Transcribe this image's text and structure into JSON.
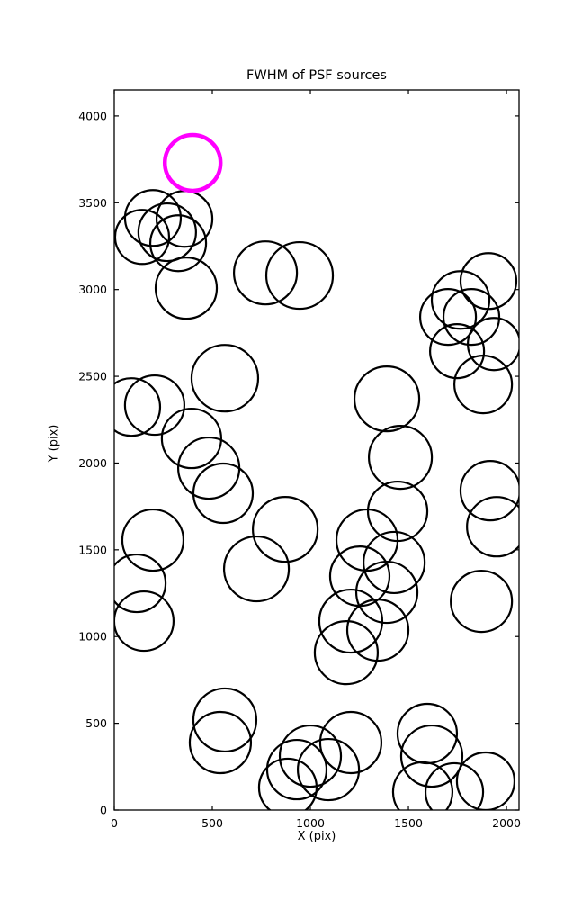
{
  "chart_data": {
    "type": "scatter",
    "title": "FWHM of PSF sources",
    "xlabel": "X (pix)",
    "ylabel": "Y (pix)",
    "xlim": [
      0,
      2064
    ],
    "ylim": [
      0,
      4150
    ],
    "xticks": [
      0,
      500,
      1000,
      1500,
      2000
    ],
    "yticks": [
      0,
      500,
      1000,
      1500,
      2000,
      2500,
      3000,
      3500,
      4000
    ],
    "grid": false,
    "legend": "none",
    "circle_color": "#000000",
    "circle_linewidth": 2.2,
    "highlight_color": "#ff00ff",
    "highlight": {
      "x": 400,
      "y": 3730,
      "r": 31,
      "lw": 4.5
    },
    "sources": [
      {
        "x": 197,
        "y": 3412,
        "r": 31
      },
      {
        "x": 358,
        "y": 3407,
        "r": 31
      },
      {
        "x": 142,
        "y": 3303,
        "r": 30
      },
      {
        "x": 326,
        "y": 3267,
        "r": 31
      },
      {
        "x": 270,
        "y": 3330,
        "r": 32
      },
      {
        "x": 367,
        "y": 3008,
        "r": 34
      },
      {
        "x": 771,
        "y": 3096,
        "r": 35
      },
      {
        "x": 945,
        "y": 3081,
        "r": 37
      },
      {
        "x": 1766,
        "y": 2940,
        "r": 32
      },
      {
        "x": 1702,
        "y": 2842,
        "r": 31
      },
      {
        "x": 1821,
        "y": 2842,
        "r": 31
      },
      {
        "x": 1908,
        "y": 3049,
        "r": 31
      },
      {
        "x": 1936,
        "y": 2686,
        "r": 29
      },
      {
        "x": 1748,
        "y": 2645,
        "r": 30
      },
      {
        "x": 1881,
        "y": 2453,
        "r": 32
      },
      {
        "x": 564,
        "y": 2489,
        "r": 37
      },
      {
        "x": 206,
        "y": 2334,
        "r": 33
      },
      {
        "x": 87,
        "y": 2323,
        "r": 32
      },
      {
        "x": 394,
        "y": 2142,
        "r": 33
      },
      {
        "x": 482,
        "y": 1971,
        "r": 34
      },
      {
        "x": 555,
        "y": 1826,
        "r": 33
      },
      {
        "x": 1390,
        "y": 2370,
        "r": 36
      },
      {
        "x": 1459,
        "y": 2033,
        "r": 35
      },
      {
        "x": 1445,
        "y": 1722,
        "r": 33
      },
      {
        "x": 1289,
        "y": 1556,
        "r": 34
      },
      {
        "x": 1427,
        "y": 1427,
        "r": 34
      },
      {
        "x": 197,
        "y": 1556,
        "r": 34
      },
      {
        "x": 115,
        "y": 1307,
        "r": 32
      },
      {
        "x": 151,
        "y": 1089,
        "r": 33
      },
      {
        "x": 872,
        "y": 1618,
        "r": 36
      },
      {
        "x": 725,
        "y": 1390,
        "r": 36
      },
      {
        "x": 1917,
        "y": 1841,
        "r": 33
      },
      {
        "x": 1950,
        "y": 1633,
        "r": 33
      },
      {
        "x": 1872,
        "y": 1203,
        "r": 34
      },
      {
        "x": 1252,
        "y": 1348,
        "r": 33
      },
      {
        "x": 1390,
        "y": 1255,
        "r": 34
      },
      {
        "x": 1206,
        "y": 1089,
        "r": 35
      },
      {
        "x": 1344,
        "y": 1037,
        "r": 34
      },
      {
        "x": 1183,
        "y": 907,
        "r": 35
      },
      {
        "x": 564,
        "y": 519,
        "r": 35
      },
      {
        "x": 541,
        "y": 389,
        "r": 34
      },
      {
        "x": 1000,
        "y": 311,
        "r": 34
      },
      {
        "x": 931,
        "y": 233,
        "r": 33
      },
      {
        "x": 1092,
        "y": 233,
        "r": 34
      },
      {
        "x": 885,
        "y": 130,
        "r": 32
      },
      {
        "x": 1206,
        "y": 389,
        "r": 34
      },
      {
        "x": 1596,
        "y": 441,
        "r": 33
      },
      {
        "x": 1619,
        "y": 311,
        "r": 34
      },
      {
        "x": 1573,
        "y": 104,
        "r": 33
      },
      {
        "x": 1734,
        "y": 104,
        "r": 32
      },
      {
        "x": 1894,
        "y": 166,
        "r": 32
      }
    ]
  }
}
